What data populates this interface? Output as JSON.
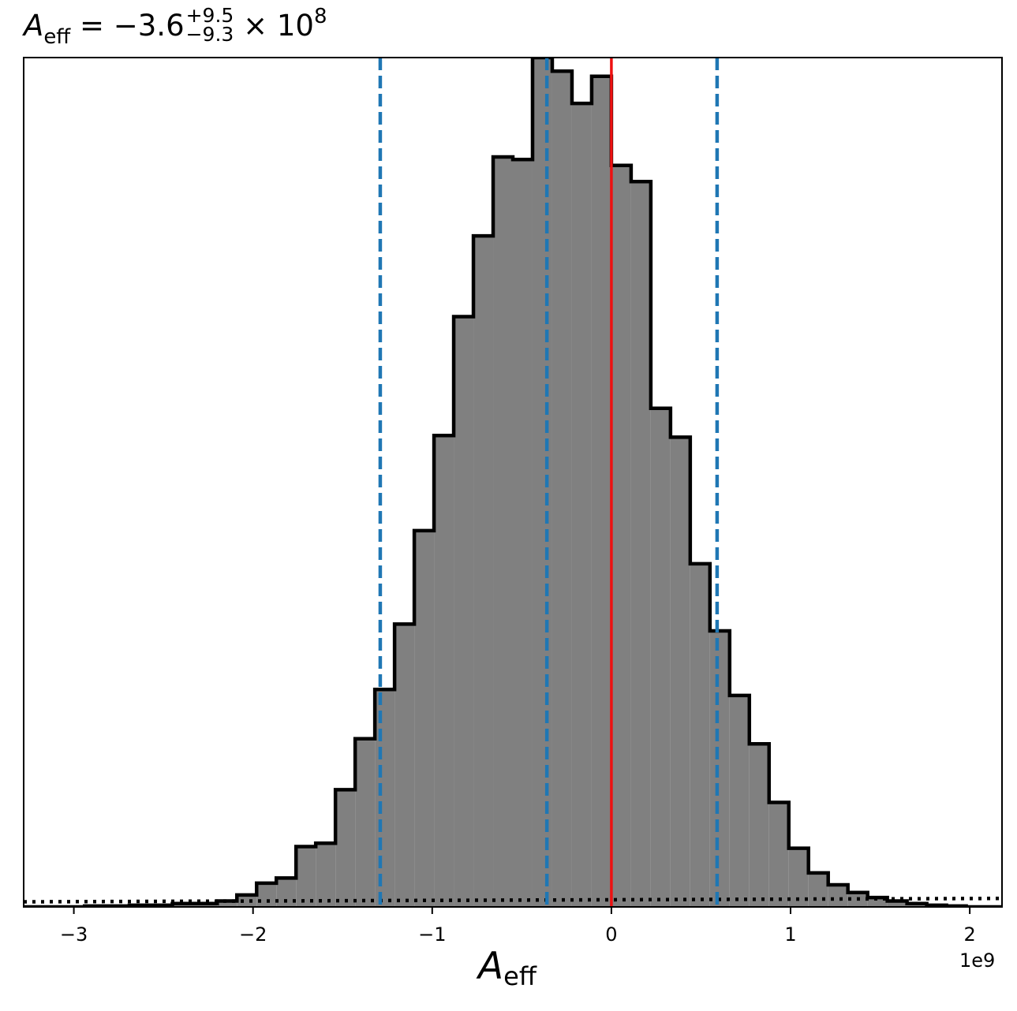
{
  "chart_data": {
    "type": "histogram",
    "title": {
      "symbol": "A",
      "subscript": "eff",
      "equals": "= −3.6",
      "upper_err": "+9.5",
      "lower_err": "−9.3",
      "times": "× 10",
      "power": "8"
    },
    "xlabel": {
      "symbol": "A",
      "subscript": "eff"
    },
    "x_offset_label": "1e9",
    "xlim": [
      -3.28,
      2.18
    ],
    "ylim": [
      0,
      1.0
    ],
    "x_ticks": [
      {
        "value": -3,
        "label": "−3"
      },
      {
        "value": -2,
        "label": "−2"
      },
      {
        "value": -1,
        "label": "−1"
      },
      {
        "value": 0,
        "label": "0"
      },
      {
        "value": 1,
        "label": "1"
      },
      {
        "value": 2,
        "label": "2"
      }
    ],
    "y_ticks": [],
    "bins": {
      "edges": [
        -3.28,
        -2.94,
        -2.69,
        -2.45,
        -2.2,
        -2.09,
        -1.98,
        -1.87,
        -1.76,
        -1.65,
        -1.54,
        -1.43,
        -1.32,
        -1.21,
        -1.1,
        -0.99,
        -0.88,
        -0.77,
        -0.66,
        -0.55,
        -0.44,
        -0.33,
        -0.22,
        -0.11,
        0.0,
        0.11,
        0.22,
        0.33,
        0.44,
        0.55,
        0.66,
        0.77,
        0.88,
        0.99,
        1.1,
        1.21,
        1.32,
        1.43,
        1.54,
        1.65,
        1.76,
        1.87,
        1.98,
        2.18
      ],
      "counts": [
        0.0,
        0.001,
        0.002,
        0.004,
        0.007,
        0.014,
        0.028,
        0.034,
        0.071,
        0.075,
        0.138,
        0.198,
        0.256,
        0.333,
        0.443,
        0.555,
        0.695,
        0.79,
        0.883,
        0.88,
        1.0,
        0.984,
        0.946,
        0.978,
        0.873,
        0.854,
        0.587,
        0.553,
        0.404,
        0.325,
        0.249,
        0.192,
        0.123,
        0.069,
        0.04,
        0.026,
        0.017,
        0.011,
        0.007,
        0.004,
        0.002,
        0.001,
        0.0
      ],
      "fill_color": "#808080",
      "edge_color": "#000000"
    },
    "vlines": [
      {
        "x": -1.29,
        "color": "#1f77b4",
        "style": "dashed",
        "name": "16th percentile"
      },
      {
        "x": -0.36,
        "color": "#1f77b4",
        "style": "dashed",
        "name": "median"
      },
      {
        "x": 0.59,
        "color": "#1f77b4",
        "style": "dashed",
        "name": "84th percentile"
      },
      {
        "x": 0.0,
        "color": "#ee1111",
        "style": "solid",
        "name": "zero"
      }
    ],
    "prior_line": {
      "color": "#000000",
      "style": "dotted",
      "points": [
        [
          -3.28,
          0.006
        ],
        [
          2.18,
          0.01
        ]
      ]
    },
    "grid": false,
    "legend": "none"
  }
}
